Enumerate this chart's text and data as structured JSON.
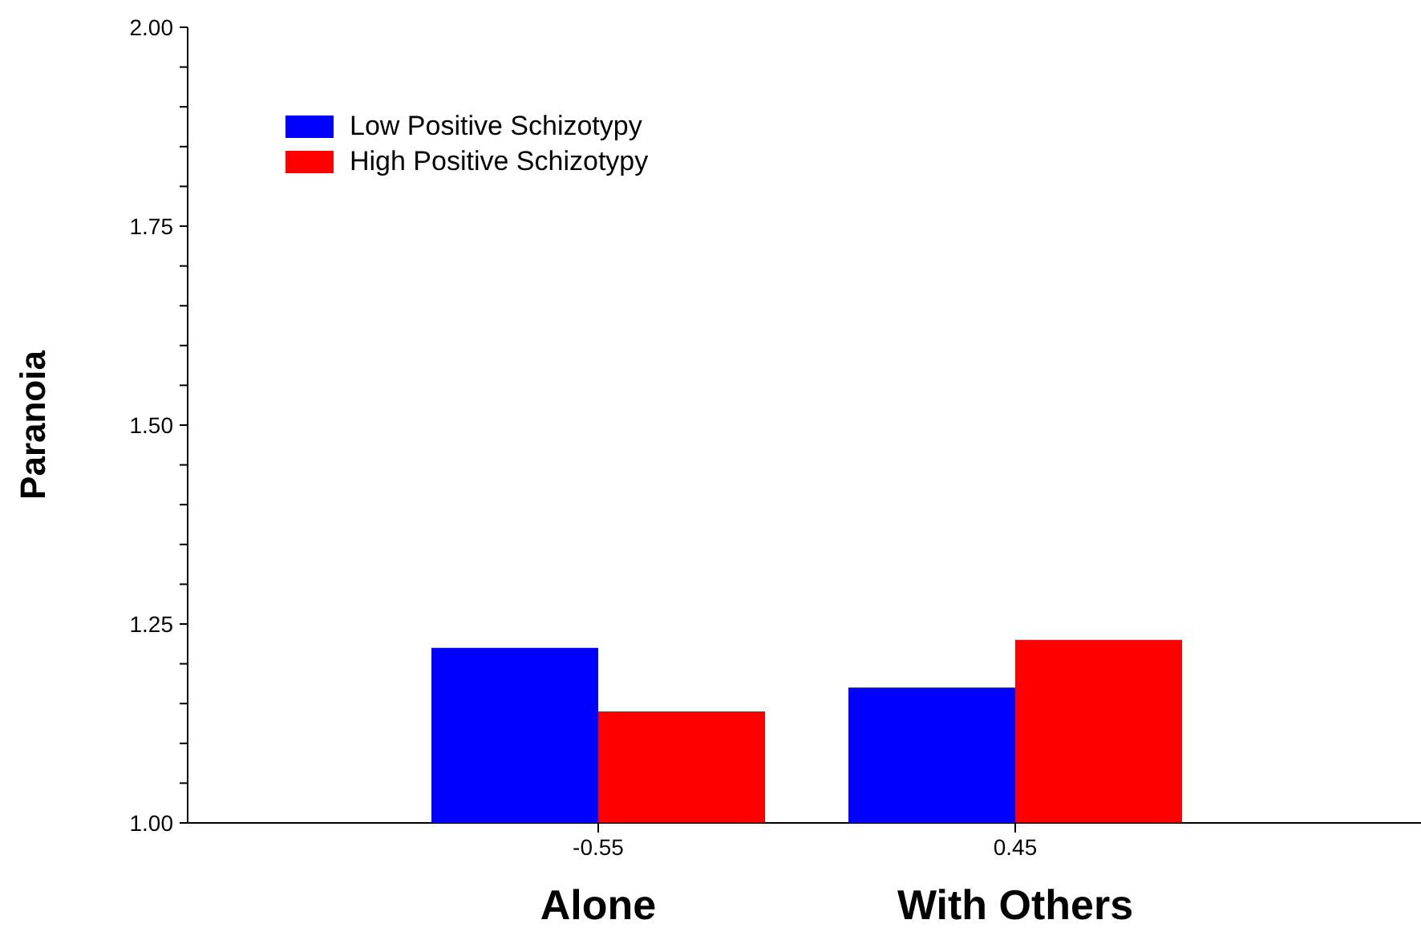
{
  "chart_data": {
    "type": "bar",
    "ylabel": "Paranoia",
    "categories": [
      "-0.55",
      "0.45"
    ],
    "series": [
      {
        "name": "Low Positive Schizotypy",
        "color": "#0000ff",
        "values": [
          1.22,
          1.17
        ]
      },
      {
        "name": "High Positive Schizotypy",
        "color": "#ff0000",
        "values": [
          1.14,
          1.23
        ]
      }
    ],
    "ylim": [
      1,
      2
    ],
    "yticks": [
      {
        "value": 1,
        "label": "1.00"
      },
      {
        "value": 1.05,
        "label": null
      },
      {
        "value": 1.1,
        "label": null
      },
      {
        "value": 1.15,
        "label": null
      },
      {
        "value": 1.2,
        "label": null
      },
      {
        "value": 1.25,
        "label": "1.25"
      },
      {
        "value": 1.3,
        "label": null
      },
      {
        "value": 1.35,
        "label": null
      },
      {
        "value": 1.4,
        "label": null
      },
      {
        "value": 1.45,
        "label": null
      },
      {
        "value": 1.5,
        "label": "1.50"
      },
      {
        "value": 1.55,
        "label": null
      },
      {
        "value": 1.6,
        "label": null
      },
      {
        "value": 1.65,
        "label": null
      },
      {
        "value": 1.7,
        "label": null
      },
      {
        "value": 1.75,
        "label": "1.75"
      },
      {
        "value": 1.8,
        "label": null
      },
      {
        "value": 1.85,
        "label": null
      },
      {
        "value": 1.9,
        "label": null
      },
      {
        "value": 1.95,
        "label": null
      },
      {
        "value": 2,
        "label": "2.00"
      }
    ],
    "annotations": [
      "Alone",
      "With Others"
    ],
    "grid": false,
    "legend": "top left"
  }
}
